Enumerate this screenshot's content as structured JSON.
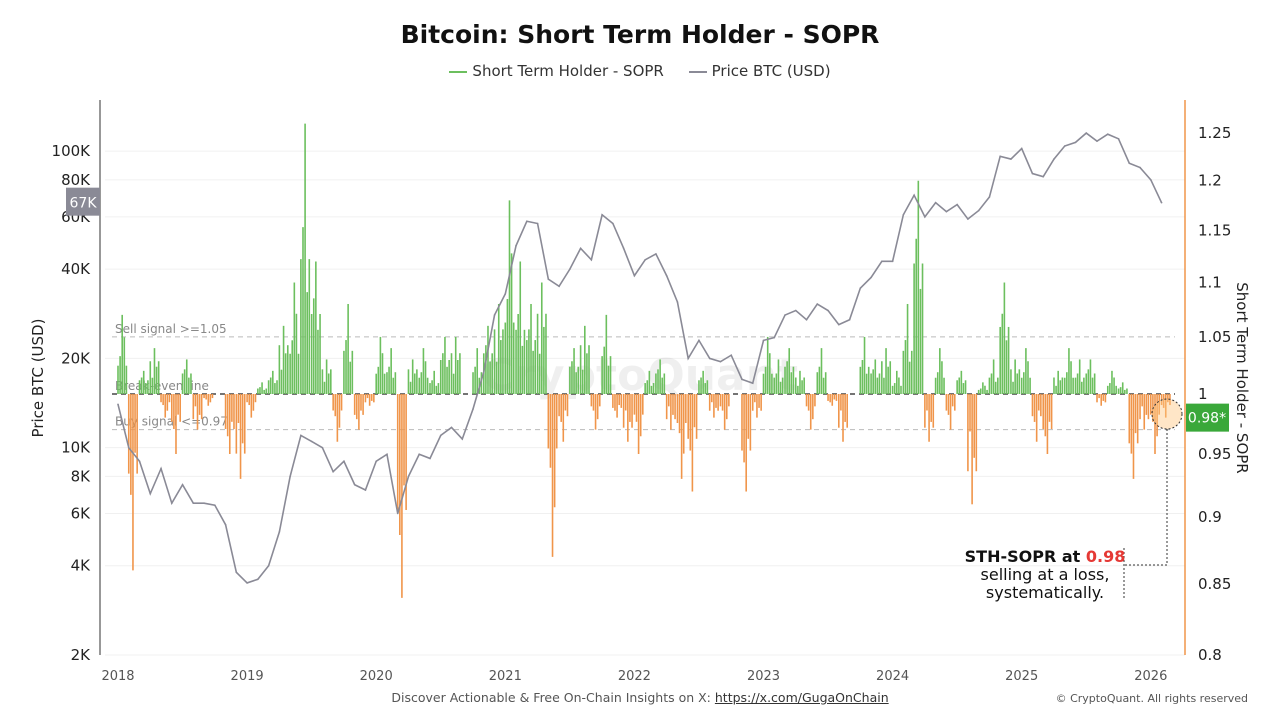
{
  "title": "Bitcoin: Short Term Holder - SOPR",
  "legend": [
    {
      "label": "Short Term Holder - SOPR",
      "color": "#6cbf5e"
    },
    {
      "label": "Price BTC (USD)",
      "color": "#8a8a96"
    }
  ],
  "watermark": "CryptoQuant",
  "footer": {
    "text": "Discover Actionable & Free On-Chain Insights on X: ",
    "link": "https://x.com/GugaOnChain",
    "copyright": "© CryptoQuant. All rights reserved"
  },
  "annotation": {
    "bold": "STH-SOPR at ",
    "value": "0.98",
    "line2": "selling at a loss,",
    "line3": "systematically.",
    "value_color": "#e53935"
  },
  "chart_data": {
    "type": "line",
    "title": "Bitcoin: Short Term Holder - SOPR",
    "xlabel": "",
    "x_ticks": [
      "2018",
      "2019",
      "2020",
      "2021",
      "2022",
      "2023",
      "2024",
      "2025",
      "2026"
    ],
    "x_range": [
      "2018-01",
      "2026-02"
    ],
    "left_axis": {
      "label": "Price BTC (USD)",
      "scale": "log",
      "range": [
        2000,
        170000
      ],
      "ticks": [
        "2K",
        "4K",
        "6K",
        "8K",
        "10K",
        "20K",
        "40K",
        "60K",
        "80K",
        "100K"
      ],
      "tick_values": [
        2000,
        4000,
        6000,
        8000,
        10000,
        20000,
        40000,
        60000,
        80000,
        100000
      ],
      "current_tag": "67K",
      "tag_color": "#8a8a96"
    },
    "right_axis": {
      "label": "Short Term Holder - SOPR",
      "scale": "log",
      "range": [
        0.8,
        1.28
      ],
      "ticks": [
        "0.8",
        "0.85",
        "0.9",
        "0.95",
        "1",
        "1.05",
        "1.1",
        "1.15",
        "1.2",
        "1.25"
      ],
      "tick_values": [
        0.8,
        0.85,
        0.9,
        0.95,
        1,
        1.05,
        1.1,
        1.15,
        1.2,
        1.25
      ],
      "current_tag": "0.98*",
      "tag_color": "#3aa83a",
      "axis_color": "#f0954a"
    },
    "reference_lines": [
      {
        "label": "Sell signal >=1.05",
        "value": 1.05,
        "style": "dashed",
        "color": "#bbbbbb"
      },
      {
        "label": "Break-even line",
        "value": 1.0,
        "style": "dashed",
        "color": "#222222"
      },
      {
        "label": "Buy signal <=0.97",
        "value": 0.97,
        "style": "dashed",
        "color": "#bbbbbb"
      }
    ],
    "colors": {
      "sopr_above": "#6cbf5e",
      "sopr_below": "#f0954a",
      "price": "#8a8a96"
    },
    "grid": true,
    "legend_position": "top",
    "series": [
      {
        "name": "Price BTC (USD)",
        "axis": "left",
        "start": "2018-01",
        "interval": "month",
        "values": [
          14000,
          10000,
          9000,
          7000,
          8500,
          6500,
          7500,
          6500,
          6500,
          6400,
          5500,
          3800,
          3500,
          3600,
          4000,
          5200,
          8000,
          11000,
          10500,
          10000,
          8300,
          9000,
          7500,
          7200,
          9000,
          9500,
          6000,
          8000,
          9500,
          9200,
          11000,
          11700,
          10700,
          13500,
          18000,
          28000,
          33000,
          48000,
          58000,
          57000,
          37000,
          35000,
          40000,
          47000,
          43000,
          61000,
          57000,
          47000,
          38000,
          43000,
          45000,
          38000,
          31000,
          20000,
          23000,
          20000,
          19500,
          20500,
          17000,
          16500,
          23000,
          23500,
          28000,
          29000,
          27000,
          30500,
          29000,
          26000,
          27000,
          34500,
          37500,
          42500,
          42500,
          61000,
          71000,
          60000,
          67000,
          62500,
          66000,
          59000,
          63000,
          70000,
          96000,
          94000,
          102000,
          84000,
          82000,
          94000,
          104000,
          107000,
          115000,
          108000,
          114000,
          110000,
          91000,
          88000,
          80000,
          67000
        ]
      },
      {
        "name": "Short Term Holder - SOPR",
        "axis": "right",
        "start": "2018-01",
        "interval": "month",
        "values": [
          1.07,
          0.86,
          1.02,
          1.04,
          0.98,
          0.95,
          1.03,
          0.97,
          0.99,
          1.0,
          0.95,
          0.93,
          0.98,
          1.01,
          1.02,
          1.06,
          1.1,
          1.26,
          1.12,
          1.03,
          0.96,
          1.08,
          0.97,
          0.99,
          1.05,
          1.04,
          0.84,
          1.03,
          1.04,
          1.02,
          1.05,
          1.05,
          1.0,
          1.04,
          1.06,
          1.08,
          1.18,
          1.12,
          1.08,
          1.1,
          0.87,
          0.96,
          1.04,
          1.06,
          0.97,
          1.07,
          0.98,
          0.96,
          0.95,
          1.02,
          1.03,
          0.97,
          0.93,
          0.92,
          1.02,
          0.98,
          0.97,
          1.0,
          0.92,
          0.98,
          1.05,
          1.03,
          1.04,
          1.02,
          0.97,
          1.04,
          0.99,
          0.96,
          1.0,
          1.05,
          1.03,
          1.04,
          1.02,
          1.08,
          1.2,
          0.96,
          1.04,
          0.97,
          1.02,
          0.91,
          1.01,
          1.03,
          1.1,
          1.03,
          1.04,
          0.96,
          0.95,
          1.02,
          1.04,
          1.03,
          1.03,
          0.99,
          1.02,
          1.01,
          0.93,
          0.97,
          0.95,
          0.98
        ]
      }
    ]
  }
}
